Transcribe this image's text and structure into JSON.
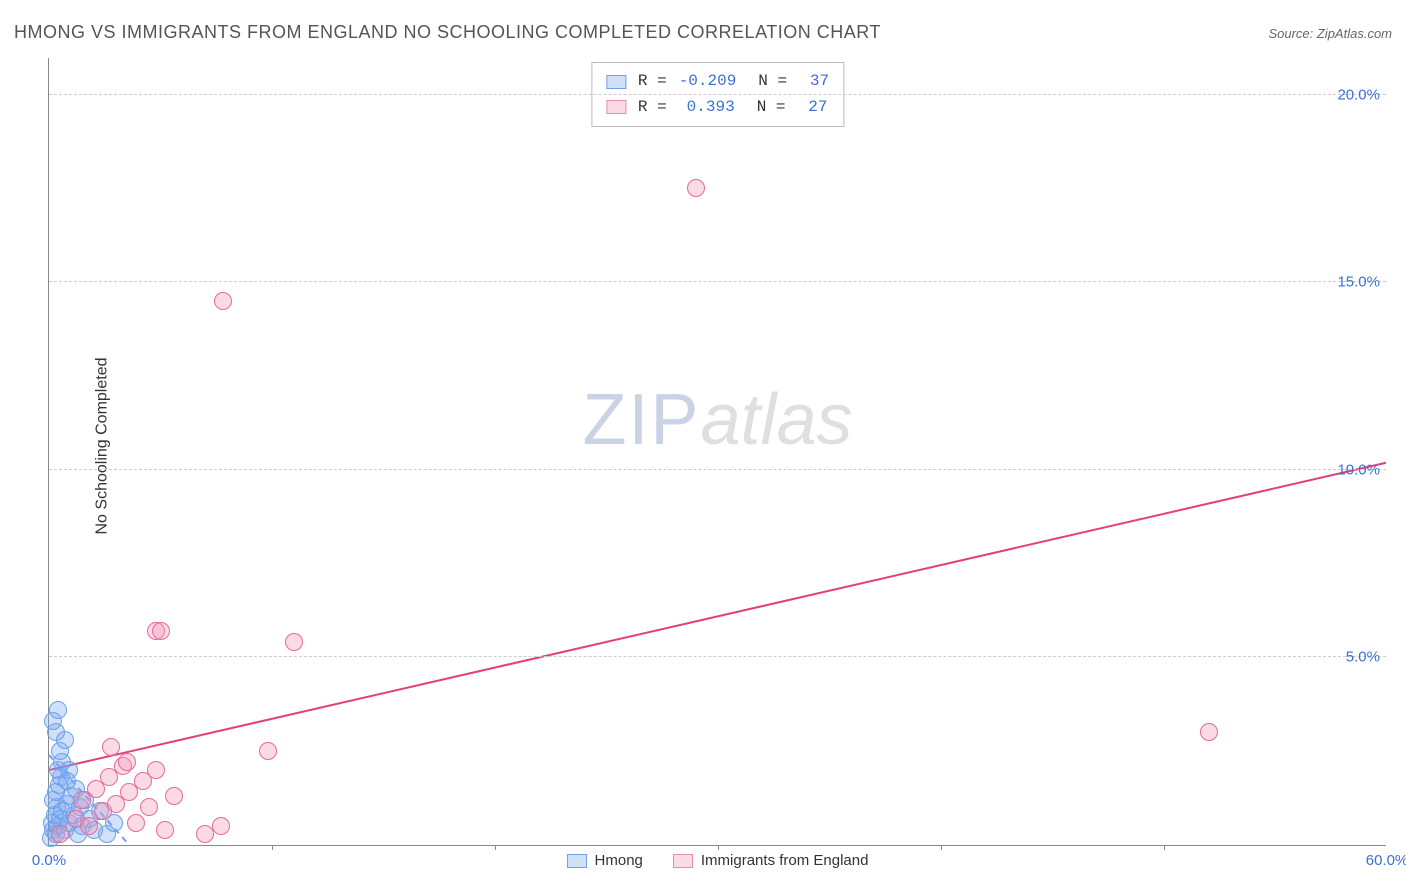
{
  "title": "HMONG VS IMMIGRANTS FROM ENGLAND NO SCHOOLING COMPLETED CORRELATION CHART",
  "source": "Source: ZipAtlas.com",
  "y_axis_title": "No Schooling Completed",
  "watermark": {
    "part1": "ZIP",
    "part2": "atlas"
  },
  "chart": {
    "type": "scatter",
    "background_color": "#ffffff",
    "grid_color": "#cccccc",
    "axis_color": "#888888",
    "text_color": "#555555",
    "tick_label_color": "#3b6fd6",
    "xlim": [
      0,
      60
    ],
    "ylim": [
      0,
      21
    ],
    "yticks": [
      {
        "value": 5,
        "label": "5.0%"
      },
      {
        "value": 10,
        "label": "10.0%"
      },
      {
        "value": 15,
        "label": "15.0%"
      },
      {
        "value": 20,
        "label": "20.0%"
      }
    ],
    "xticks": [
      {
        "value": 0,
        "label": "0.0%"
      },
      {
        "value": 60,
        "label": "60.0%"
      }
    ],
    "xtick_marks": [
      10,
      20,
      30,
      40,
      50
    ],
    "marker_radius": 9,
    "marker_stroke_width": 1.2,
    "trend_line_width": 2
  },
  "correlation_legend": [
    {
      "r_label": "R =",
      "r": "-0.209",
      "n_label": "N =",
      "n": "37",
      "swatch_fill": "#cfe0f7",
      "swatch_stroke": "#6fa0e8"
    },
    {
      "r_label": "R =",
      "r": "0.393",
      "n_label": "N =",
      "n": "27",
      "swatch_fill": "#fcdbe4",
      "swatch_stroke": "#e98bac"
    }
  ],
  "series_legend": [
    {
      "label": "Hmong",
      "swatch_fill": "#cfe0f7",
      "swatch_stroke": "#6fa0e8"
    },
    {
      "label": "Immigrants from England",
      "swatch_fill": "#fcdbe4",
      "swatch_stroke": "#e98bac"
    }
  ],
  "series": [
    {
      "name": "Hmong",
      "fill": "rgba(120,170,240,0.35)",
      "stroke": "#6fa0e8",
      "trend": {
        "x1": 0,
        "y1": 2.4,
        "x2": 3.6,
        "y2": 0,
        "dash": "6,5",
        "color": "#6fa0e8"
      },
      "points": [
        {
          "x": 0.1,
          "y": 0.2
        },
        {
          "x": 0.2,
          "y": 0.4
        },
        {
          "x": 0.15,
          "y": 0.6
        },
        {
          "x": 0.3,
          "y": 0.3
        },
        {
          "x": 0.25,
          "y": 0.8
        },
        {
          "x": 0.35,
          "y": 1.0
        },
        {
          "x": 0.4,
          "y": 0.5
        },
        {
          "x": 0.2,
          "y": 1.2
        },
        {
          "x": 0.5,
          "y": 0.7
        },
        {
          "x": 0.3,
          "y": 1.4
        },
        {
          "x": 0.6,
          "y": 0.9
        },
        {
          "x": 0.45,
          "y": 1.6
        },
        {
          "x": 0.7,
          "y": 0.4
        },
        {
          "x": 0.55,
          "y": 1.8
        },
        {
          "x": 0.8,
          "y": 1.1
        },
        {
          "x": 0.4,
          "y": 2.0
        },
        {
          "x": 0.9,
          "y": 0.6
        },
        {
          "x": 0.6,
          "y": 2.2
        },
        {
          "x": 1.0,
          "y": 1.3
        },
        {
          "x": 0.5,
          "y": 2.5
        },
        {
          "x": 1.1,
          "y": 0.8
        },
        {
          "x": 0.7,
          "y": 2.8
        },
        {
          "x": 1.2,
          "y": 1.5
        },
        {
          "x": 0.3,
          "y": 3.0
        },
        {
          "x": 0.8,
          "y": 1.7
        },
        {
          "x": 0.2,
          "y": 3.3
        },
        {
          "x": 0.9,
          "y": 2.0
        },
        {
          "x": 0.4,
          "y": 3.6
        },
        {
          "x": 1.3,
          "y": 0.3
        },
        {
          "x": 1.4,
          "y": 1.0
        },
        {
          "x": 1.5,
          "y": 0.5
        },
        {
          "x": 1.6,
          "y": 1.2
        },
        {
          "x": 1.8,
          "y": 0.7
        },
        {
          "x": 2.0,
          "y": 0.4
        },
        {
          "x": 2.3,
          "y": 0.9
        },
        {
          "x": 2.6,
          "y": 0.3
        },
        {
          "x": 2.9,
          "y": 0.6
        }
      ]
    },
    {
      "name": "Immigrants from England",
      "fill": "rgba(240,150,180,0.35)",
      "stroke": "#e76a98",
      "trend": {
        "x1": 0,
        "y1": 2.0,
        "x2": 60,
        "y2": 10.2,
        "dash": "none",
        "color": "#e33f7a"
      },
      "points": [
        {
          "x": 0.5,
          "y": 0.3
        },
        {
          "x": 1.2,
          "y": 0.7
        },
        {
          "x": 1.5,
          "y": 1.2
        },
        {
          "x": 1.8,
          "y": 0.5
        },
        {
          "x": 2.1,
          "y": 1.5
        },
        {
          "x": 2.4,
          "y": 0.9
        },
        {
          "x": 2.7,
          "y": 1.8
        },
        {
          "x": 3.0,
          "y": 1.1
        },
        {
          "x": 3.3,
          "y": 2.1
        },
        {
          "x": 3.6,
          "y": 1.4
        },
        {
          "x": 3.9,
          "y": 0.6
        },
        {
          "x": 4.2,
          "y": 1.7
        },
        {
          "x": 4.5,
          "y": 1.0
        },
        {
          "x": 4.8,
          "y": 2.0
        },
        {
          "x": 5.2,
          "y": 0.4
        },
        {
          "x": 5.6,
          "y": 1.3
        },
        {
          "x": 2.8,
          "y": 2.6
        },
        {
          "x": 3.5,
          "y": 2.2
        },
        {
          "x": 4.8,
          "y": 5.7
        },
        {
          "x": 7.0,
          "y": 0.3
        },
        {
          "x": 9.8,
          "y": 2.5
        },
        {
          "x": 11.0,
          "y": 5.4
        },
        {
          "x": 7.7,
          "y": 0.5
        },
        {
          "x": 5.0,
          "y": 5.7
        },
        {
          "x": 7.8,
          "y": 14.5
        },
        {
          "x": 29.0,
          "y": 17.5
        },
        {
          "x": 52.0,
          "y": 3.0
        }
      ]
    }
  ]
}
